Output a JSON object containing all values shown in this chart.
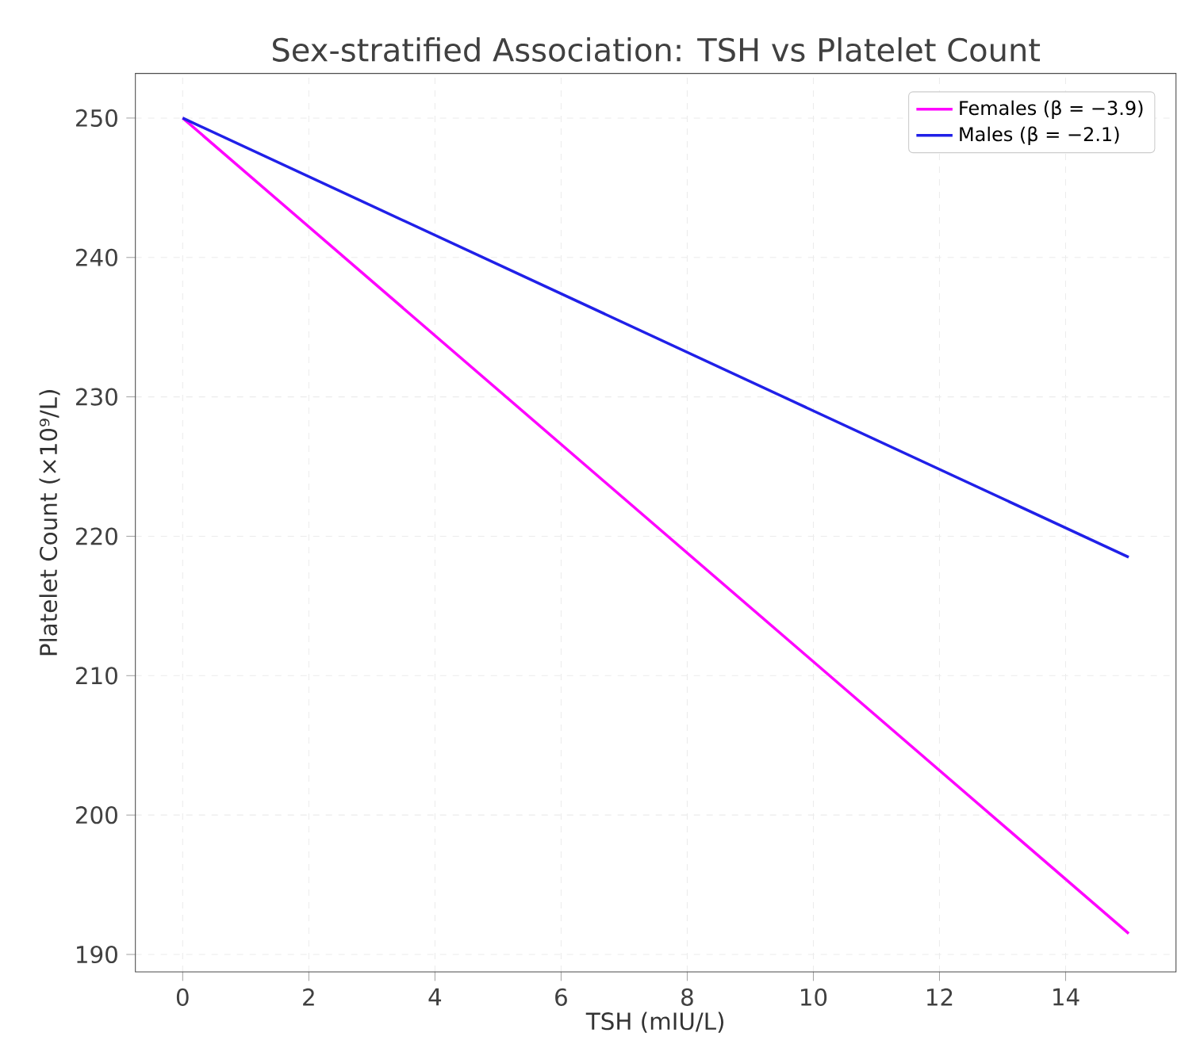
{
  "chart_data": {
    "type": "line",
    "title": "Sex-stratified Association: TSH vs Platelet Count",
    "xlabel": "TSH (mIU/L)",
    "ylabel": "Platelet Count (×10⁹/L)",
    "x": [
      0,
      15
    ],
    "series": [
      {
        "name": "Females (β = −3.9)",
        "color": "#ff00ff",
        "values": [
          250,
          191.5
        ]
      },
      {
        "name": "Males (β = −2.1)",
        "color": "#2020e8",
        "values": [
          250,
          218.5
        ]
      }
    ],
    "xlim": [
      -0.75,
      15.75
    ],
    "xticks": [
      0,
      2,
      4,
      6,
      8,
      10,
      12,
      14
    ],
    "ylim": [
      188.75,
      253.2
    ],
    "yticks": [
      190,
      200,
      210,
      220,
      230,
      240,
      250
    ],
    "grid": true,
    "legend": "top right",
    "marker": "none",
    "line_style": "solid"
  }
}
